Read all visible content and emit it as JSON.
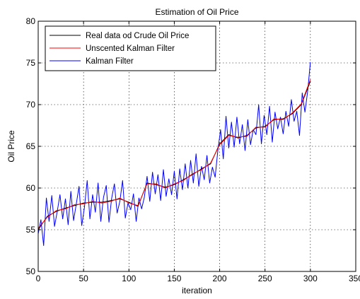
{
  "chart_data": {
    "type": "line",
    "title": "Estimation of Oil Price",
    "xlabel": "iteration",
    "ylabel": "Oil Price",
    "xlim": [
      0,
      350
    ],
    "ylim": [
      50,
      80
    ],
    "x_ticks": [
      0,
      50,
      100,
      150,
      200,
      250,
      300,
      350
    ],
    "y_ticks": [
      50,
      55,
      60,
      65,
      70,
      75,
      80
    ],
    "grid": true,
    "legend_position": "top-left",
    "series": [
      {
        "name": "Real data od Crude Oil Price",
        "color": "#000000",
        "x": [
          0,
          10,
          20,
          30,
          40,
          50,
          60,
          70,
          80,
          90,
          100,
          110,
          120,
          130,
          140,
          150,
          160,
          170,
          180,
          190,
          200,
          210,
          220,
          230,
          240,
          250,
          260,
          270,
          280,
          290,
          300
        ],
        "y": [
          55.0,
          56.6,
          57.2,
          57.6,
          57.9,
          58.2,
          58.3,
          58.3,
          58.5,
          58.7,
          58.3,
          57.8,
          60.6,
          60.4,
          60.1,
          60.4,
          61.0,
          61.6,
          62.3,
          62.9,
          65.3,
          66.4,
          66.0,
          66.3,
          67.2,
          67.4,
          68.2,
          68.3,
          68.9,
          70.0,
          72.8
        ]
      },
      {
        "name": "Unscented Kalman Filter",
        "color": "#ff0000",
        "x": [
          0,
          10,
          20,
          30,
          40,
          50,
          60,
          70,
          80,
          90,
          100,
          110,
          120,
          130,
          140,
          150,
          160,
          170,
          180,
          190,
          200,
          210,
          220,
          230,
          240,
          250,
          260,
          270,
          280,
          290,
          300
        ],
        "y": [
          55.2,
          56.5,
          57.3,
          57.5,
          58.0,
          58.1,
          58.4,
          58.2,
          58.4,
          58.8,
          58.2,
          57.9,
          60.5,
          60.5,
          60.0,
          60.5,
          60.9,
          61.7,
          62.2,
          63.0,
          65.2,
          66.3,
          66.1,
          66.2,
          67.3,
          67.3,
          68.3,
          68.2,
          69.0,
          70.1,
          73.0
        ]
      },
      {
        "name": "Kalman Filter",
        "color": "#0000ff",
        "x": [
          0,
          3,
          6,
          9,
          12,
          15,
          18,
          21,
          24,
          27,
          30,
          33,
          36,
          39,
          42,
          45,
          48,
          51,
          54,
          57,
          60,
          63,
          66,
          69,
          72,
          75,
          78,
          81,
          84,
          87,
          90,
          93,
          96,
          99,
          102,
          105,
          108,
          111,
          114,
          117,
          120,
          123,
          126,
          129,
          132,
          135,
          138,
          141,
          144,
          147,
          150,
          153,
          156,
          159,
          162,
          165,
          168,
          171,
          174,
          177,
          180,
          183,
          186,
          189,
          192,
          195,
          198,
          201,
          204,
          207,
          210,
          213,
          216,
          219,
          222,
          225,
          228,
          231,
          234,
          237,
          240,
          243,
          246,
          249,
          252,
          255,
          258,
          261,
          264,
          267,
          270,
          273,
          276,
          279,
          282,
          285,
          288,
          291,
          294,
          297,
          300
        ],
        "y": [
          54.5,
          56.2,
          53.1,
          58.8,
          56.0,
          59.1,
          55.4,
          57.2,
          59.2,
          56.3,
          58.7,
          55.6,
          59.6,
          56.1,
          58.1,
          60.2,
          55.5,
          57.7,
          60.9,
          56.3,
          59.2,
          57.1,
          60.6,
          56.0,
          58.9,
          60.3,
          55.9,
          58.8,
          60.5,
          57.0,
          58.4,
          60.9,
          56.4,
          58.2,
          57.4,
          59.3,
          56.0,
          58.8,
          57.5,
          58.9,
          61.4,
          58.4,
          61.9,
          59.3,
          61.6,
          58.5,
          62.2,
          59.0,
          61.1,
          59.2,
          62.0,
          58.7,
          62.3,
          59.8,
          62.9,
          60.0,
          63.3,
          60.6,
          64.1,
          60.2,
          62.6,
          61.0,
          63.9,
          60.6,
          62.5,
          61.3,
          64.5,
          67.0,
          63.5,
          68.6,
          64.8,
          67.9,
          64.9,
          68.5,
          65.3,
          67.6,
          64.5,
          68.2,
          65.2,
          67.0,
          66.4,
          70.0,
          65.3,
          68.7,
          66.4,
          69.8,
          65.5,
          69.1,
          67.1,
          68.5,
          66.5,
          69.2,
          67.4,
          70.6,
          68.0,
          69.2,
          66.3,
          71.4,
          69.1,
          71.6,
          75.1
        ]
      }
    ]
  }
}
